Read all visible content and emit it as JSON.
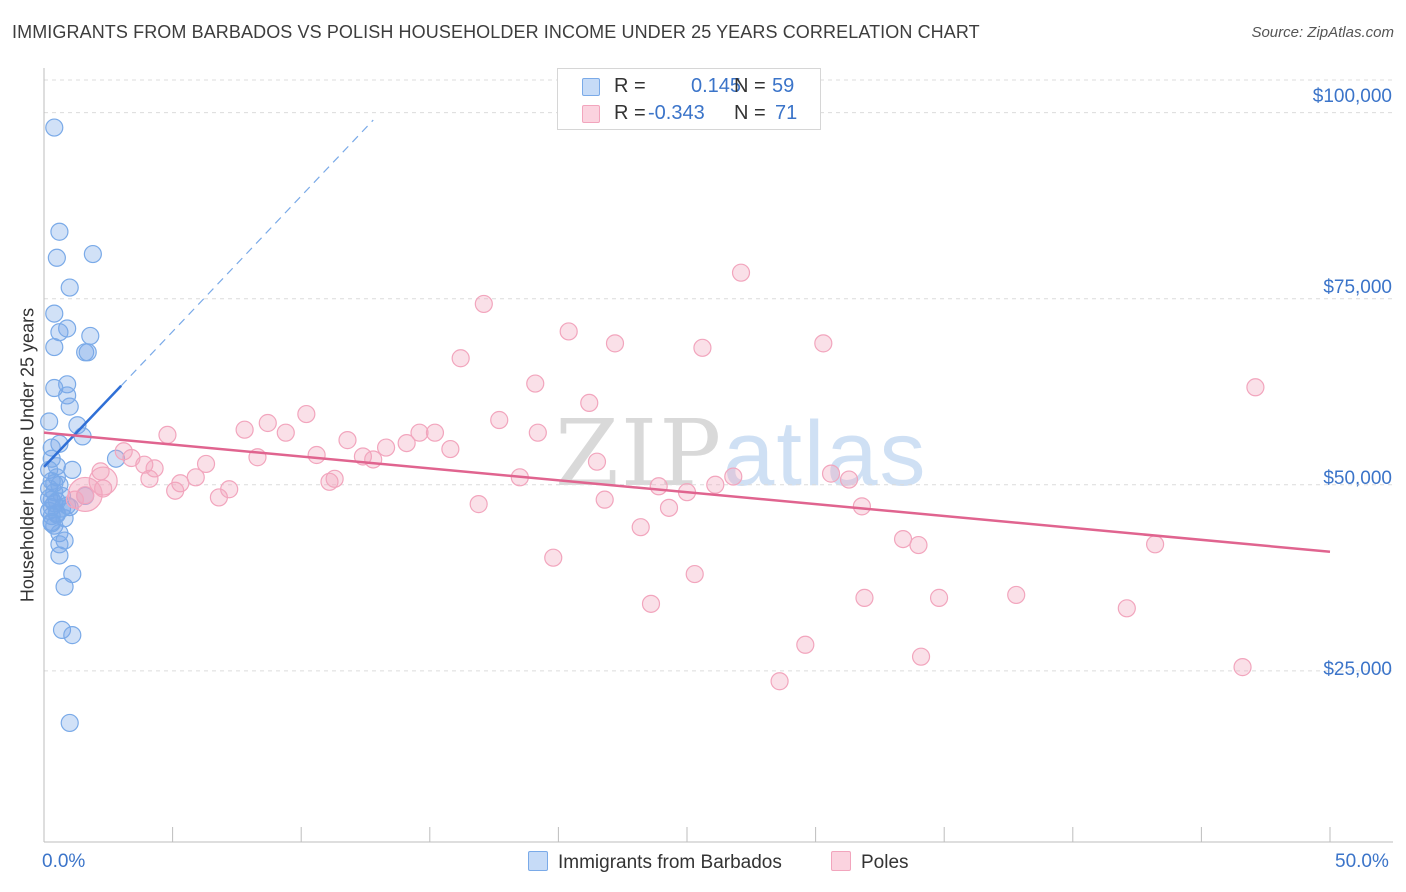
{
  "title": "IMMIGRANTS FROM BARBADOS VS POLISH HOUSEHOLDER INCOME UNDER 25 YEARS CORRELATION CHART",
  "source": "Source: ZipAtlas.com",
  "watermark": {
    "left": "ZIP",
    "right": "atlas"
  },
  "legend": {
    "rows": [
      {
        "r_label": "R =",
        "r_value": "0.145",
        "n_label": "N =",
        "n_value": "59"
      },
      {
        "r_label": "R =",
        "r_value": "-0.343",
        "n_label": "N =",
        "n_value": "71"
      }
    ]
  },
  "chart_data": {
    "type": "scatter",
    "title": "IMMIGRANTS FROM BARBADOS VS POLISH HOUSEHOLDER INCOME UNDER 25 YEARS CORRELATION CHART",
    "xlabel": "",
    "ylabel": "Householder Income Under 25 years",
    "xlim": [
      0,
      50
    ],
    "ylim": [
      2000,
      106000
    ],
    "x_tick_labels": [
      "0.0%",
      "50.0%"
    ],
    "y_ticks": [
      25000,
      50000,
      75000,
      100000
    ],
    "y_tick_labels": [
      "$25,000",
      "$50,000",
      "$75,000",
      "$100,000"
    ],
    "grid": true,
    "legend_position": "bottom",
    "series": [
      {
        "name": "Immigrants from Barbados",
        "color": "#7aaae8",
        "line_color": "#2f6fd6",
        "r": 0.145,
        "n": 59,
        "trend": {
          "x0": 0,
          "y0": 52400,
          "x1": 3.0,
          "y1": 63300,
          "dash_to_x": 12.8,
          "dash_to_y": 99000
        },
        "points": [
          [
            0.4,
            98000
          ],
          [
            0.6,
            84000
          ],
          [
            1.9,
            81000
          ],
          [
            0.5,
            80500
          ],
          [
            1.0,
            76500
          ],
          [
            0.4,
            73000
          ],
          [
            0.9,
            71000
          ],
          [
            0.6,
            70500
          ],
          [
            1.8,
            70000
          ],
          [
            0.4,
            68500
          ],
          [
            1.6,
            67800
          ],
          [
            1.7,
            67800
          ],
          [
            0.9,
            63500
          ],
          [
            0.4,
            63000
          ],
          [
            0.9,
            62000
          ],
          [
            1.0,
            60500
          ],
          [
            0.2,
            58500
          ],
          [
            1.3,
            58000
          ],
          [
            1.5,
            56500
          ],
          [
            0.6,
            55500
          ],
          [
            0.3,
            55000
          ],
          [
            0.3,
            53500
          ],
          [
            2.8,
            53500
          ],
          [
            0.5,
            52500
          ],
          [
            1.1,
            52000
          ],
          [
            0.2,
            52000
          ],
          [
            0.5,
            51000
          ],
          [
            0.3,
            50500
          ],
          [
            0.6,
            50000
          ],
          [
            0.2,
            49500
          ],
          [
            0.4,
            49000
          ],
          [
            0.7,
            48500
          ],
          [
            1.6,
            48500
          ],
          [
            0.3,
            48000
          ],
          [
            0.4,
            47500
          ],
          [
            1.0,
            47000
          ],
          [
            0.2,
            46500
          ],
          [
            0.5,
            46000
          ],
          [
            0.3,
            45800
          ],
          [
            0.8,
            45500
          ],
          [
            0.3,
            45000
          ],
          [
            0.4,
            44500
          ],
          [
            0.6,
            43500
          ],
          [
            0.8,
            42500
          ],
          [
            0.6,
            42000
          ],
          [
            0.6,
            40500
          ],
          [
            1.1,
            38000
          ],
          [
            0.8,
            36300
          ],
          [
            0.7,
            30500
          ],
          [
            1.1,
            29800
          ],
          [
            1.0,
            18000
          ],
          [
            0.3,
            47000
          ],
          [
            0.5,
            46200
          ],
          [
            0.2,
            48200
          ],
          [
            0.4,
            50200
          ],
          [
            0.7,
            46800
          ],
          [
            0.3,
            44800
          ],
          [
            0.5,
            47800
          ],
          [
            0.9,
            47200
          ]
        ]
      },
      {
        "name": "Poles",
        "color": "#f2a5bd",
        "line_color": "#e0648f",
        "r": -0.343,
        "n": 71,
        "trend": {
          "x0": 0,
          "y0": 57000,
          "x1": 50,
          "y1": 41000
        },
        "points": [
          [
            27.1,
            78500
          ],
          [
            17.1,
            74300
          ],
          [
            20.4,
            70600
          ],
          [
            22.2,
            69000
          ],
          [
            25.6,
            68400
          ],
          [
            30.3,
            69000
          ],
          [
            16.2,
            67000
          ],
          [
            19.1,
            63600
          ],
          [
            47.1,
            63100
          ],
          [
            21.2,
            61000
          ],
          [
            10.2,
            59500
          ],
          [
            17.7,
            58700
          ],
          [
            8.7,
            58300
          ],
          [
            7.8,
            57400
          ],
          [
            19.2,
            57000
          ],
          [
            15.2,
            57000
          ],
          [
            9.4,
            57000
          ],
          [
            14.6,
            57000
          ],
          [
            4.8,
            56700
          ],
          [
            11.8,
            56000
          ],
          [
            14.1,
            55600
          ],
          [
            13.3,
            55000
          ],
          [
            15.8,
            54800
          ],
          [
            10.6,
            54000
          ],
          [
            12.4,
            53800
          ],
          [
            8.3,
            53700
          ],
          [
            3.4,
            53600
          ],
          [
            12.8,
            53400
          ],
          [
            21.5,
            53100
          ],
          [
            6.3,
            52800
          ],
          [
            3.9,
            52700
          ],
          [
            4.3,
            52200
          ],
          [
            2.2,
            51800
          ],
          [
            30.6,
            51500
          ],
          [
            26.8,
            51100
          ],
          [
            5.9,
            51000
          ],
          [
            18.5,
            51000
          ],
          [
            11.3,
            50800
          ],
          [
            31.3,
            50700
          ],
          [
            11.1,
            50400
          ],
          [
            5.3,
            50200
          ],
          [
            26.1,
            50000
          ],
          [
            23.9,
            49800
          ],
          [
            7.2,
            49400
          ],
          [
            25.0,
            49000
          ],
          [
            1.6,
            48600
          ],
          [
            6.8,
            48300
          ],
          [
            21.8,
            48000
          ],
          [
            16.9,
            47400
          ],
          [
            31.8,
            47100
          ],
          [
            24.3,
            46900
          ],
          [
            1.2,
            48000
          ],
          [
            23.2,
            44300
          ],
          [
            33.4,
            42700
          ],
          [
            34.0,
            41900
          ],
          [
            43.2,
            42000
          ],
          [
            19.8,
            40200
          ],
          [
            25.3,
            38000
          ],
          [
            37.8,
            35200
          ],
          [
            31.9,
            34800
          ],
          [
            34.8,
            34800
          ],
          [
            23.6,
            34000
          ],
          [
            42.1,
            33400
          ],
          [
            29.6,
            28500
          ],
          [
            34.1,
            26900
          ],
          [
            46.6,
            25500
          ],
          [
            28.6,
            23600
          ],
          [
            2.3,
            49500
          ],
          [
            3.1,
            54500
          ],
          [
            4.1,
            50800
          ],
          [
            5.1,
            49200
          ]
        ]
      }
    ]
  }
}
